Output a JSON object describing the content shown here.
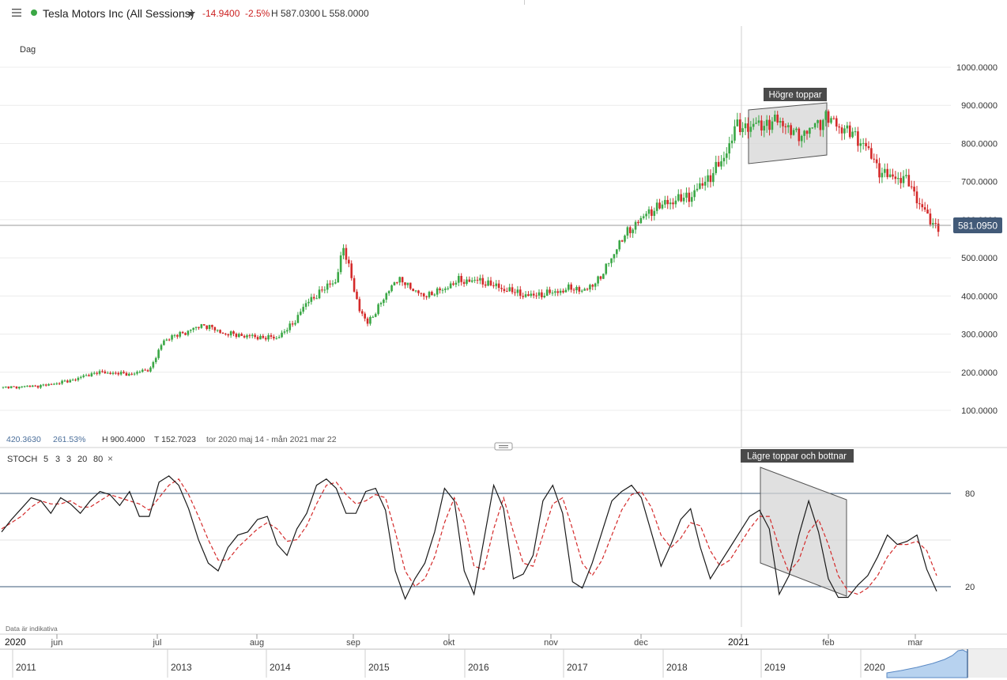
{
  "header": {
    "instrument": "Tesla Motors Inc (All Sessions)",
    "change": "-14.9400",
    "change_pct": "-2.5%",
    "high": "H 587.0300",
    "low": "L 558.0000"
  },
  "colors": {
    "up": "#3aa745",
    "down": "#d42a2a",
    "stoch_k": "#1a1a1a",
    "stoch_d": "#d42a2a",
    "ref_line": "#3b5a7a"
  },
  "price_panel": {
    "interval_label": "Dag",
    "current_price": "581.0950",
    "stats": {
      "value": "420.3630",
      "pct": "261.53%",
      "high": "H 900.4000",
      "low": "T 152.7023",
      "range": "tor 2020 maj 14 - mån 2021 mar 22"
    },
    "annotation": "Högre toppar"
  },
  "stoch_panel": {
    "label": "STOCH",
    "params": [
      "5",
      "3",
      "3",
      "20",
      "80"
    ],
    "close_glyph": "×",
    "annotation": "Lägre toppar och bottnar",
    "disclaimer": "Data är indikativa"
  },
  "chart_data": [
    {
      "type": "candlestick",
      "title": "",
      "y_ticks": [
        "100.0000",
        "200.0000",
        "300.0000",
        "400.0000",
        "500.0000",
        "600.0000",
        "700.0000",
        "800.0000",
        "900.0000",
        "1000.0000"
      ],
      "ylim": [
        0,
        1060
      ],
      "last_price": 581.095,
      "approx_close_path": [
        [
          0,
          160
        ],
        [
          15,
          165
        ],
        [
          25,
          178
        ],
        [
          35,
          200
        ],
        [
          48,
          195
        ],
        [
          55,
          210
        ],
        [
          60,
          285
        ],
        [
          68,
          305
        ],
        [
          75,
          325
        ],
        [
          82,
          302
        ],
        [
          95,
          292
        ],
        [
          102,
          290
        ],
        [
          108,
          325
        ],
        [
          112,
          372
        ],
        [
          118,
          410
        ],
        [
          124,
          440
        ],
        [
          127,
          525
        ],
        [
          130,
          450
        ],
        [
          133,
          360
        ],
        [
          136,
          330
        ],
        [
          141,
          380
        ],
        [
          146,
          440
        ],
        [
          150,
          435
        ],
        [
          156,
          400
        ],
        [
          162,
          410
        ],
        [
          170,
          440
        ],
        [
          178,
          440
        ],
        [
          186,
          420
        ],
        [
          196,
          400
        ],
        [
          206,
          410
        ],
        [
          212,
          420
        ],
        [
          218,
          415
        ],
        [
          224,
          460
        ],
        [
          230,
          540
        ],
        [
          236,
          590
        ],
        [
          243,
          630
        ],
        [
          250,
          650
        ],
        [
          256,
          660
        ],
        [
          262,
          700
        ],
        [
          269,
          760
        ],
        [
          273,
          840
        ],
        [
          278,
          845
        ],
        [
          284,
          850
        ],
        [
          290,
          860
        ],
        [
          296,
          820
        ],
        [
          301,
          835
        ],
        [
          307,
          870
        ],
        [
          313,
          840
        ],
        [
          318,
          820
        ],
        [
          322,
          790
        ],
        [
          328,
          720
        ],
        [
          334,
          710
        ],
        [
          338,
          700
        ],
        [
          342,
          640
        ],
        [
          347,
          590
        ],
        [
          349,
          581
        ]
      ]
    },
    {
      "type": "line",
      "title": "STOCH",
      "y_ticks": [
        "20",
        "80"
      ],
      "ylim": [
        0,
        100
      ],
      "series": [
        {
          "name": "",
          "values": [
            60,
            68,
            75,
            82,
            80,
            72,
            82,
            78,
            72,
            80,
            86,
            84,
            77,
            86,
            70,
            70,
            92,
            96,
            90,
            75,
            55,
            40,
            35,
            50,
            58,
            60,
            68,
            70,
            52,
            45,
            62,
            72,
            90,
            94,
            88,
            72,
            72,
            86,
            88,
            74,
            35,
            17,
            30,
            40,
            60,
            88,
            80,
            35,
            20,
            55,
            90,
            75,
            30,
            33,
            45,
            80,
            90,
            72,
            28,
            24,
            40,
            60,
            80,
            86,
            90,
            82,
            60,
            38,
            52,
            68,
            75,
            50,
            30,
            40,
            50,
            60,
            70,
            74,
            62,
            20,
            32,
            58,
            80,
            60,
            30,
            18,
            18,
            26,
            32,
            44,
            58,
            52,
            54,
            58,
            36,
            22
          ]
        },
        {
          "name": "",
          "values": [
            62,
            66,
            70,
            76,
            80,
            78,
            78,
            80,
            76,
            76,
            80,
            84,
            82,
            80,
            78,
            74,
            82,
            90,
            94,
            84,
            70,
            55,
            42,
            42,
            50,
            56,
            62,
            66,
            62,
            54,
            55,
            64,
            78,
            90,
            92,
            84,
            78,
            80,
            84,
            82,
            60,
            35,
            25,
            30,
            44,
            66,
            82,
            66,
            38,
            36,
            62,
            82,
            60,
            40,
            38,
            58,
            78,
            82,
            62,
            40,
            32,
            42,
            58,
            74,
            84,
            86,
            76,
            58,
            50,
            56,
            66,
            64,
            48,
            38,
            42,
            52,
            62,
            70,
            70,
            50,
            34,
            42,
            60,
            68,
            52,
            32,
            22,
            20,
            24,
            32,
            44,
            52,
            52,
            54,
            48,
            32
          ]
        }
      ]
    }
  ],
  "time_axis": {
    "year_label": "2020",
    "year2_label": "2021",
    "months": [
      "jun",
      "jul",
      "aug",
      "sep",
      "okt",
      "nov",
      "dec",
      "feb",
      "mar"
    ]
  },
  "navigator": {
    "years": [
      "2011",
      "2013",
      "2014",
      "2015",
      "2016",
      "2017",
      "2018",
      "2019",
      "2020"
    ]
  }
}
